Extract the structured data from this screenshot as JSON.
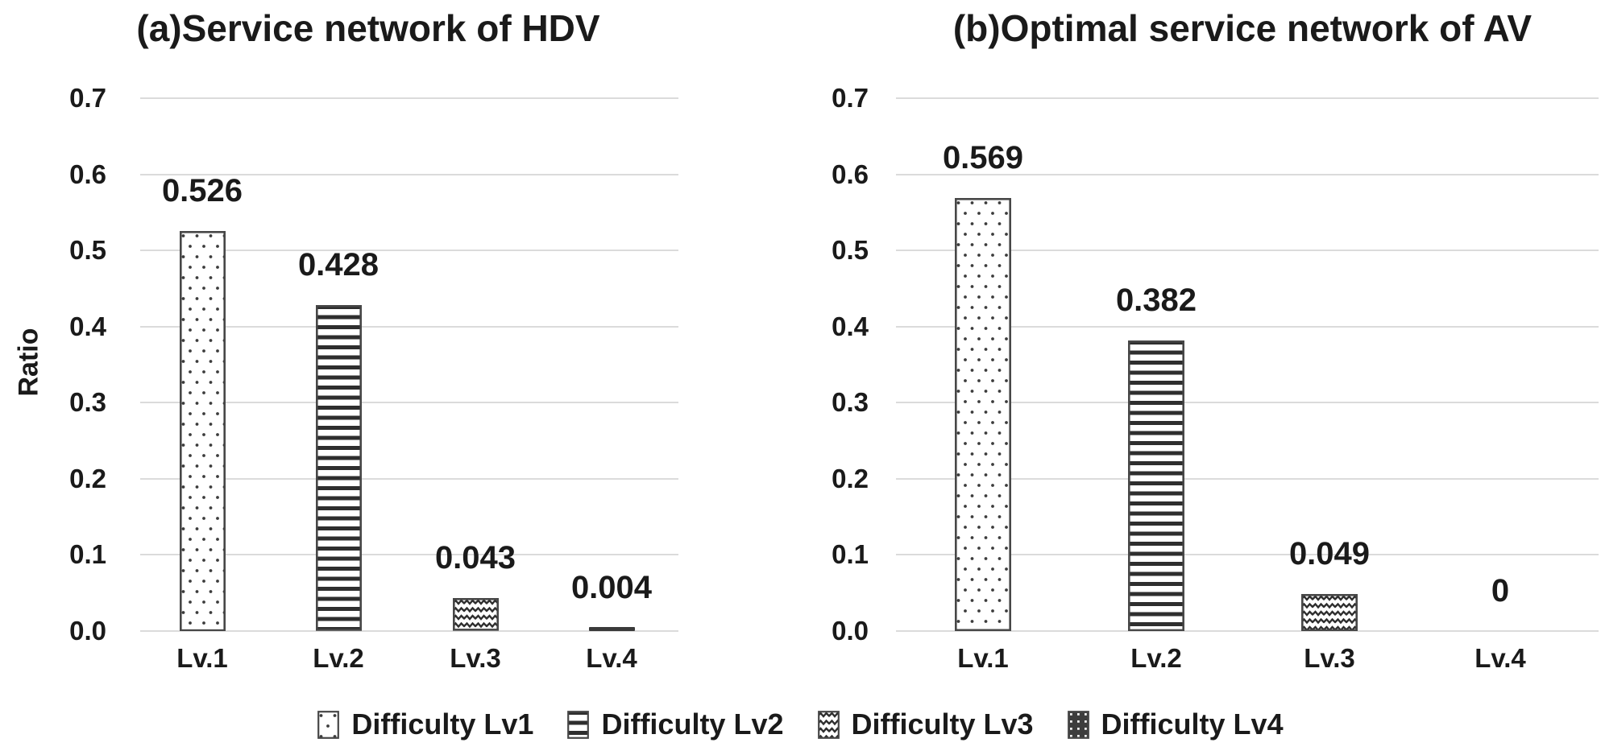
{
  "figure": {
    "background": "#ffffff"
  },
  "chart_data": [
    {
      "type": "bar",
      "title": "(a)Service network of HDV",
      "ylabel": "Ratio",
      "xlabel": "",
      "categories": [
        "Lv.1",
        "Lv.2",
        "Lv.3",
        "Lv.4"
      ],
      "values": [
        0.526,
        0.428,
        0.043,
        0.004
      ],
      "data_labels": [
        "0.526",
        "0.428",
        "0.043",
        "0.004"
      ],
      "ylim": [
        0.0,
        0.7
      ],
      "yticks": [
        0.0,
        0.1,
        0.2,
        0.3,
        0.4,
        0.5,
        0.6,
        0.7
      ],
      "ytick_labels": [
        "0.0",
        "0.1",
        "0.2",
        "0.3",
        "0.4",
        "0.5",
        "0.6",
        "0.7"
      ],
      "grid": true,
      "bar_patterns": [
        "dots",
        "horizontal-stripes",
        "zigzag",
        "dark-grid"
      ]
    },
    {
      "type": "bar",
      "title": "(b)Optimal service network of AV",
      "ylabel": "",
      "xlabel": "",
      "categories": [
        "Lv.1",
        "Lv.2",
        "Lv.3",
        "Lv.4"
      ],
      "values": [
        0.569,
        0.382,
        0.049,
        0
      ],
      "data_labels": [
        "0.569",
        "0.382",
        "0.049",
        "0"
      ],
      "ylim": [
        0.0,
        0.7
      ],
      "yticks": [
        0.0,
        0.1,
        0.2,
        0.3,
        0.4,
        0.5,
        0.6,
        0.7
      ],
      "ytick_labels": [
        "0.0",
        "0.1",
        "0.2",
        "0.3",
        "0.4",
        "0.5",
        "0.6",
        "0.7"
      ],
      "grid": true,
      "bar_patterns": [
        "dots",
        "horizontal-stripes",
        "zigzag",
        "dark-grid"
      ]
    }
  ],
  "legend": {
    "position": "bottom",
    "items": [
      {
        "label": "Difficulty Lv1",
        "pattern": "dots"
      },
      {
        "label": "Difficulty Lv2",
        "pattern": "horizontal-stripes"
      },
      {
        "label": "Difficulty Lv3",
        "pattern": "zigzag"
      },
      {
        "label": "Difficulty Lv4",
        "pattern": "dark-grid"
      }
    ]
  },
  "colors": {
    "background": "#ffffff",
    "text": "#1a1a1a",
    "gridline": "#dbdbdb",
    "bar_stroke": "#474747",
    "pattern_ink": "#2e2e2e"
  }
}
